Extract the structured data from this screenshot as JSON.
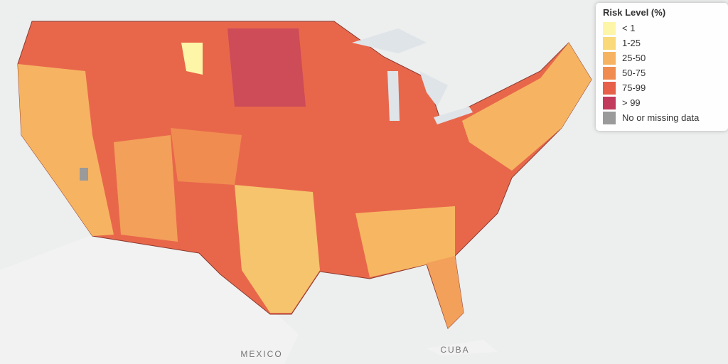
{
  "legend": {
    "title": "Risk Level (%)",
    "items": [
      {
        "label": "< 1",
        "color": "#fdf5a8"
      },
      {
        "label": "1-25",
        "color": "#f9d97a"
      },
      {
        "label": "25-50",
        "color": "#f6b462"
      },
      {
        "label": "50-75",
        "color": "#f18c50"
      },
      {
        "label": "75-99",
        "color": "#e6604a"
      },
      {
        "label": "> 99",
        "color": "#c23a5c"
      },
      {
        "label": "No or missing data",
        "color": "#9a9a9a"
      }
    ]
  },
  "places": [
    {
      "label": "MEXICO"
    },
    {
      "label": "CUBA"
    }
  ]
}
